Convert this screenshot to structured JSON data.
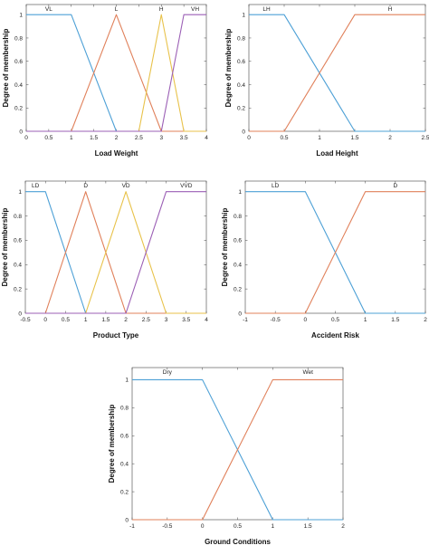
{
  "chart_data": [
    {
      "type": "line",
      "xlabel": "Load Weight",
      "ylabel": "Degree of membership",
      "xlim": [
        0,
        4
      ],
      "ylim": [
        0,
        1
      ],
      "xticks": [
        "0",
        "0.5",
        "1",
        "1.5",
        "2",
        "2.5",
        "3",
        "3.5",
        "4"
      ],
      "yticks": [
        "0",
        "0.2",
        "0.4",
        "0.6",
        "0.8",
        "1"
      ],
      "series": [
        {
          "name": "VL",
          "color": "#4da0d6",
          "x": [
            0,
            1,
            2,
            4
          ],
          "y": [
            1,
            1,
            0,
            0
          ]
        },
        {
          "name": "L",
          "color": "#e0805a",
          "x": [
            0,
            1,
            2,
            3,
            4
          ],
          "y": [
            0,
            0,
            1,
            0,
            0
          ]
        },
        {
          "name": "H",
          "color": "#e8c24a",
          "x": [
            0,
            2.5,
            3,
            3.5,
            4
          ],
          "y": [
            0,
            0,
            1,
            0,
            0
          ]
        },
        {
          "name": "VH",
          "color": "#9b5fb5",
          "x": [
            0,
            3,
            3.5,
            4
          ],
          "y": [
            0,
            0,
            1,
            1
          ]
        }
      ]
    },
    {
      "type": "line",
      "xlabel": "Load Height",
      "ylabel": "Degree of membership",
      "xlim": [
        0,
        2.5
      ],
      "ylim": [
        0,
        1
      ],
      "xticks": [
        "0",
        "0.5",
        "1",
        "1.5",
        "2",
        "2.5"
      ],
      "yticks": [
        "0",
        "0.2",
        "0.4",
        "0.6",
        "0.8",
        "1"
      ],
      "series": [
        {
          "name": "LH",
          "color": "#4da0d6",
          "x": [
            0,
            0.5,
            1.5,
            2.5
          ],
          "y": [
            1,
            1,
            0,
            0
          ]
        },
        {
          "name": "H",
          "color": "#e0805a",
          "x": [
            0,
            0.5,
            1.5,
            2.5
          ],
          "y": [
            0,
            0,
            1,
            1
          ]
        }
      ]
    },
    {
      "type": "line",
      "xlabel": "Product Type",
      "ylabel": "Degree of membership",
      "xlim": [
        -0.5,
        4
      ],
      "ylim": [
        0,
        1
      ],
      "xticks": [
        "-0.5",
        "0",
        "0.5",
        "1",
        "1.5",
        "2",
        "2.5",
        "3",
        "3.5",
        "4"
      ],
      "yticks": [
        "0",
        "0.2",
        "0.4",
        "0.6",
        "0.8",
        "1"
      ],
      "series": [
        {
          "name": "LD",
          "color": "#4da0d6",
          "x": [
            -0.5,
            0,
            1,
            4
          ],
          "y": [
            1,
            1,
            0,
            0
          ]
        },
        {
          "name": "D",
          "color": "#e0805a",
          "x": [
            -0.5,
            0,
            1,
            2,
            4
          ],
          "y": [
            0,
            0,
            1,
            0,
            0
          ]
        },
        {
          "name": "VD",
          "color": "#e8c24a",
          "x": [
            -0.5,
            1,
            2,
            3,
            4
          ],
          "y": [
            0,
            0,
            1,
            0,
            0
          ]
        },
        {
          "name": "VVD",
          "color": "#9b5fb5",
          "x": [
            -0.5,
            2,
            3,
            4
          ],
          "y": [
            0,
            0,
            1,
            1
          ]
        }
      ]
    },
    {
      "type": "line",
      "xlabel": "Accident Risk",
      "ylabel": "Degree of membership",
      "xlim": [
        -1,
        2
      ],
      "ylim": [
        0,
        1
      ],
      "xticks": [
        "-1",
        "-0.5",
        "0",
        "0.5",
        "1",
        "1.5",
        "2"
      ],
      "yticks": [
        "0",
        "0.2",
        "0.4",
        "0.6",
        "0.8",
        "1"
      ],
      "series": [
        {
          "name": "LD",
          "color": "#4da0d6",
          "x": [
            -1,
            0,
            1,
            2
          ],
          "y": [
            1,
            1,
            0,
            0
          ]
        },
        {
          "name": "D",
          "color": "#e0805a",
          "x": [
            -1,
            0,
            1,
            2
          ],
          "y": [
            0,
            0,
            1,
            1
          ]
        }
      ]
    },
    {
      "type": "line",
      "xlabel": "Ground Conditions",
      "ylabel": "Degree of membership",
      "xlim": [
        -1,
        2
      ],
      "ylim": [
        0,
        1
      ],
      "xticks": [
        "-1",
        "-0.5",
        "0",
        "0.5",
        "1",
        "1.5",
        "2"
      ],
      "yticks": [
        "0",
        "0.2",
        "0.4",
        "0.6",
        "0.8",
        "1"
      ],
      "series": [
        {
          "name": "Dry",
          "color": "#4da0d6",
          "x": [
            -1,
            0,
            1,
            2
          ],
          "y": [
            1,
            1,
            0,
            0
          ]
        },
        {
          "name": "Wet",
          "color": "#e0805a",
          "x": [
            -1,
            0,
            1,
            2
          ],
          "y": [
            0,
            0,
            1,
            1
          ]
        }
      ]
    }
  ]
}
